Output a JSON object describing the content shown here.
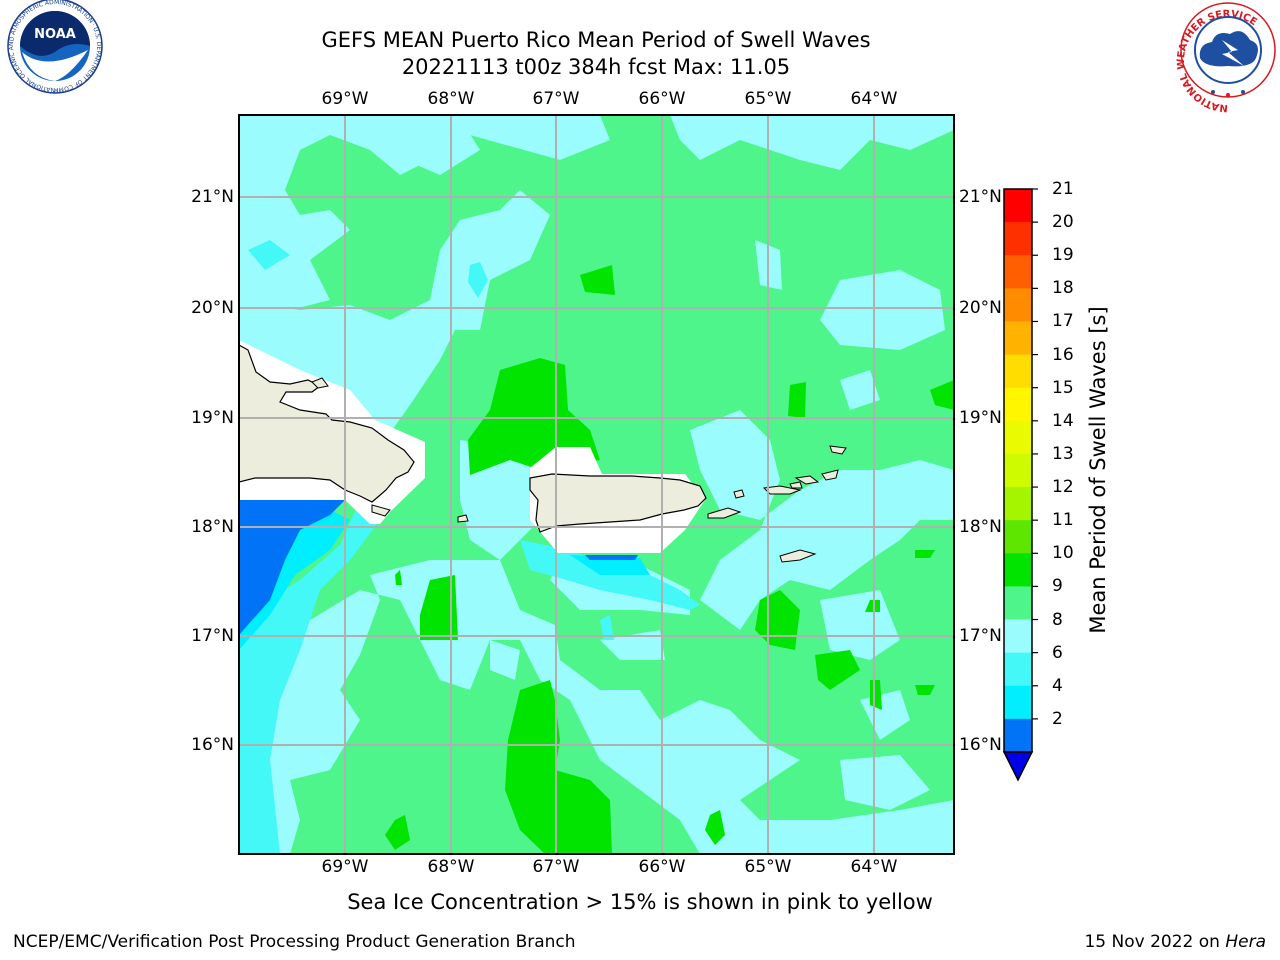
{
  "header": {
    "title_line1": "GEFS MEAN Puerto Rico Mean Period of Swell Waves",
    "title_line2": "20221113 t00z 384h fcst   Max: 11.05"
  },
  "map": {
    "lon_labels": [
      "69°W",
      "68°W",
      "67°W",
      "66°W",
      "65°W",
      "64°W"
    ],
    "lat_labels": [
      "21°N",
      "20°N",
      "19°N",
      "18°N",
      "17°N",
      "16°N"
    ],
    "ocean_fill_colors": {
      "light_cyan": "#9bfcfd",
      "green": "#4df58a",
      "bright_green": "#00e400",
      "cyan": "#44f8f8",
      "aqua": "#00eefe",
      "blue": "#0073f6",
      "land": "#ededde"
    }
  },
  "colorbar": {
    "label": "Mean Period of Swell Waves [s]",
    "ticks": [
      "21",
      "20",
      "19",
      "18",
      "17",
      "16",
      "15",
      "14",
      "13",
      "12",
      "11",
      "10",
      "9",
      "8",
      "6",
      "4",
      "2"
    ],
    "colors": [
      "#fe0000",
      "#fe3000",
      "#ff5f00",
      "#ff8c00",
      "#ffb300",
      "#ffdd00",
      "#fff600",
      "#eafb00",
      "#cefb00",
      "#a6f500",
      "#5ee600",
      "#00e400",
      "#4df58a",
      "#9bfcfd",
      "#44f8f8",
      "#00eefe",
      "#0073f6"
    ],
    "extend_color": "#0000e8"
  },
  "footer": {
    "note": "Sea Ice Concentration > 15% is shown in pink to yellow",
    "credit": "NCEP/EMC/Verification Post Processing Product Generation Branch",
    "date_prefix": "15 Nov 2022 on ",
    "date_machine": "Hera"
  },
  "logos": {
    "left": "noaa-logo",
    "left_text": "NOAA",
    "left_ring_text": "NATIONAL OCEANIC AND ATMOSPHERIC ADMINISTRATION · U.S. DEPARTMENT OF COMMERCE",
    "right": "nws-logo",
    "right_ring_text": "NATIONAL WEATHER SERVICE"
  }
}
